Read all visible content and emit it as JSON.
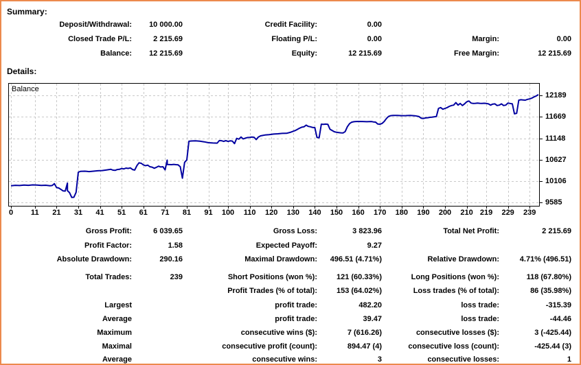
{
  "colors": {
    "accent_border": "#EC8A4D",
    "balance_line": "#0000A0",
    "grid": "#C8C8C8",
    "text": "#000000"
  },
  "summary": {
    "title": "Summary:",
    "rows": [
      [
        "Deposit/Withdrawal:",
        "10 000.00",
        "Credit Facility:",
        "0.00",
        "",
        ""
      ],
      [
        "Closed Trade P/L:",
        "2 215.69",
        "Floating P/L:",
        "0.00",
        "Margin:",
        "0.00"
      ],
      [
        "Balance:",
        "12 215.69",
        "Equity:",
        "12 215.69",
        "Free Margin:",
        "12 215.69"
      ]
    ]
  },
  "details": {
    "title": "Details:",
    "rows": [
      [
        "Gross Profit:",
        "6 039.65",
        "Gross Loss:",
        "3 823.96",
        "Total Net Profit:",
        "2 215.69"
      ],
      [
        "Profit Factor:",
        "1.58",
        "Expected Payoff:",
        "9.27",
        "",
        ""
      ],
      [
        "Absolute Drawdown:",
        "290.16",
        "Maximal Drawdown:",
        "496.51 (4.71%)",
        "Relative Drawdown:",
        "4.71% (496.51)"
      ],
      [
        "Total Trades:",
        "239",
        "Short Positions (won %):",
        "121 (60.33%)",
        "Long Positions (won %):",
        "118 (67.80%)"
      ],
      [
        "",
        "",
        "Profit Trades (% of total):",
        "153 (64.02%)",
        "Loss trades (% of total):",
        "86 (35.98%)"
      ],
      [
        "Largest",
        "",
        "profit trade:",
        "482.20",
        "loss trade:",
        "-315.39"
      ],
      [
        "Average",
        "",
        "profit trade:",
        "39.47",
        "loss trade:",
        "-44.46"
      ],
      [
        "Maximum",
        "",
        "consecutive wins ($):",
        "7 (616.26)",
        "consecutive losses ($):",
        "3 (-425.44)"
      ],
      [
        "Maximal",
        "",
        "consecutive profit (count):",
        "894.47 (4)",
        "consecutive loss (count):",
        "-425.44 (3)"
      ],
      [
        "Average",
        "",
        "consecutive wins:",
        "3",
        "consecutive losses:",
        "1"
      ]
    ]
  },
  "chart_data": {
    "type": "line",
    "title": "Balance",
    "legend": [
      "Balance"
    ],
    "grid": "dashed",
    "xlim": [
      0,
      243
    ],
    "ylim": [
      9500,
      12480
    ],
    "x_ticks": [
      0,
      11,
      21,
      31,
      41,
      51,
      61,
      71,
      81,
      91,
      100,
      110,
      120,
      130,
      140,
      150,
      160,
      170,
      180,
      190,
      200,
      210,
      219,
      229,
      239
    ],
    "y_ticks": [
      12189,
      11669,
      11148,
      10627,
      10106,
      9585
    ],
    "series": [
      {
        "name": "Balance",
        "points": [
          [
            0,
            9990
          ],
          [
            2,
            10000
          ],
          [
            4,
            9995
          ],
          [
            6,
            10005
          ],
          [
            8,
            10000
          ],
          [
            10,
            10010
          ],
          [
            12,
            10005
          ],
          [
            14,
            9998
          ],
          [
            16,
            10002
          ],
          [
            18,
            9990
          ],
          [
            19,
            9995
          ],
          [
            20,
            10040
          ],
          [
            21,
            9945
          ],
          [
            22,
            9935
          ],
          [
            23,
            9900
          ],
          [
            24,
            9865
          ],
          [
            25,
            9860
          ],
          [
            26,
            10055
          ],
          [
            26,
            9870
          ],
          [
            27,
            9820
          ],
          [
            28,
            9705
          ],
          [
            29,
            9710
          ],
          [
            30,
            9830
          ],
          [
            31,
            10320
          ],
          [
            32,
            10340
          ],
          [
            34,
            10345
          ],
          [
            36,
            10335
          ],
          [
            38,
            10345
          ],
          [
            40,
            10355
          ],
          [
            42,
            10360
          ],
          [
            44,
            10375
          ],
          [
            46,
            10390
          ],
          [
            47,
            10370
          ],
          [
            48,
            10365
          ],
          [
            49,
            10385
          ],
          [
            50,
            10390
          ],
          [
            51,
            10410
          ],
          [
            52,
            10400
          ],
          [
            53,
            10420
          ],
          [
            54,
            10412
          ],
          [
            55,
            10425
          ],
          [
            56,
            10385
          ],
          [
            57,
            10372
          ],
          [
            58,
            10480
          ],
          [
            59,
            10550
          ],
          [
            60,
            10538
          ],
          [
            61,
            10500
          ],
          [
            62,
            10480
          ],
          [
            63,
            10492
          ],
          [
            64,
            10455
          ],
          [
            65,
            10445
          ],
          [
            66,
            10418
          ],
          [
            67,
            10440
          ],
          [
            68,
            10468
          ],
          [
            69,
            10448
          ],
          [
            70,
            10455
          ],
          [
            71,
            10378
          ],
          [
            72,
            10615
          ],
          [
            72,
            10508
          ],
          [
            74,
            10505
          ],
          [
            75,
            10512
          ],
          [
            76,
            10505
          ],
          [
            77,
            10500
          ],
          [
            78,
            10455
          ],
          [
            79,
            10175
          ],
          [
            80,
            10560
          ],
          [
            81,
            10620
          ],
          [
            82,
            11075
          ],
          [
            83,
            11082
          ],
          [
            85,
            11085
          ],
          [
            87,
            11078
          ],
          [
            89,
            11062
          ],
          [
            91,
            11040
          ],
          [
            93,
            11033
          ],
          [
            95,
            11030
          ],
          [
            96,
            11092
          ],
          [
            97,
            11088
          ],
          [
            98,
            11072
          ],
          [
            99,
            11090
          ],
          [
            100,
            11072
          ],
          [
            101,
            11085
          ],
          [
            102,
            11080
          ],
          [
            103,
            11018
          ],
          [
            104,
            11145
          ],
          [
            105,
            11128
          ],
          [
            106,
            11180
          ],
          [
            107,
            11133
          ],
          [
            108,
            11152
          ],
          [
            109,
            11165
          ],
          [
            110,
            11170
          ],
          [
            111,
            11180
          ],
          [
            112,
            11172
          ],
          [
            113,
            11118
          ],
          [
            114,
            11180
          ],
          [
            115,
            11208
          ],
          [
            117,
            11228
          ],
          [
            119,
            11238
          ],
          [
            121,
            11252
          ],
          [
            123,
            11258
          ],
          [
            125,
            11268
          ],
          [
            127,
            11270
          ],
          [
            129,
            11298
          ],
          [
            131,
            11338
          ],
          [
            133,
            11395
          ],
          [
            134,
            11418
          ],
          [
            135,
            11428
          ],
          [
            136,
            11468
          ],
          [
            137,
            11438
          ],
          [
            138,
            11428
          ],
          [
            139,
            11412
          ],
          [
            140,
            11408
          ],
          [
            141,
            11168
          ],
          [
            142,
            11162
          ],
          [
            143,
            11492
          ],
          [
            144,
            11488
          ],
          [
            145,
            11494
          ],
          [
            146,
            11488
          ],
          [
            147,
            11368
          ],
          [
            148,
            11338
          ],
          [
            149,
            11308
          ],
          [
            150,
            11295
          ],
          [
            151,
            11288
          ],
          [
            152,
            11282
          ],
          [
            153,
            11278
          ],
          [
            154,
            11312
          ],
          [
            155,
            11430
          ],
          [
            156,
            11505
          ],
          [
            157,
            11540
          ],
          [
            158,
            11552
          ],
          [
            159,
            11558
          ],
          [
            160,
            11560
          ],
          [
            162,
            11558
          ],
          [
            164,
            11552
          ],
          [
            166,
            11558
          ],
          [
            167,
            11548
          ],
          [
            168,
            11542
          ],
          [
            169,
            11498
          ],
          [
            170,
            11492
          ],
          [
            171,
            11510
          ],
          [
            172,
            11560
          ],
          [
            173,
            11632
          ],
          [
            174,
            11682
          ],
          [
            175,
            11700
          ],
          [
            176,
            11706
          ],
          [
            178,
            11706
          ],
          [
            180,
            11700
          ],
          [
            182,
            11702
          ],
          [
            184,
            11706
          ],
          [
            186,
            11698
          ],
          [
            187,
            11690
          ],
          [
            188,
            11678
          ],
          [
            189,
            11640
          ],
          [
            190,
            11632
          ],
          [
            191,
            11645
          ],
          [
            192,
            11650
          ],
          [
            193,
            11660
          ],
          [
            194,
            11665
          ],
          [
            195,
            11672
          ],
          [
            196,
            11678
          ],
          [
            197,
            11878
          ],
          [
            198,
            11898
          ],
          [
            199,
            11858
          ],
          [
            200,
            11878
          ],
          [
            201,
            11898
          ],
          [
            202,
            11928
          ],
          [
            203,
            11948
          ],
          [
            204,
            11958
          ],
          [
            205,
            12018
          ],
          [
            206,
            11958
          ],
          [
            207,
            11998
          ],
          [
            208,
            11948
          ],
          [
            209,
            11988
          ],
          [
            210,
            12038
          ],
          [
            211,
            12058
          ],
          [
            212,
            12008
          ],
          [
            213,
            11998
          ],
          [
            214,
            12002
          ],
          [
            215,
            12008
          ],
          [
            216,
            12002
          ],
          [
            217,
            11998
          ],
          [
            218,
            12003
          ],
          [
            219,
            11998
          ],
          [
            220,
            11988
          ],
          [
            221,
            11958
          ],
          [
            222,
            11983
          ],
          [
            223,
            11988
          ],
          [
            224,
            11948
          ],
          [
            225,
            11958
          ],
          [
            226,
            11988
          ],
          [
            227,
            11948
          ],
          [
            228,
            11958
          ],
          [
            229,
            12008
          ],
          [
            230,
            11998
          ],
          [
            231,
            11988
          ],
          [
            232,
            11745
          ],
          [
            233,
            11758
          ],
          [
            234,
            12078
          ],
          [
            235,
            12088
          ],
          [
            236,
            12083
          ],
          [
            237,
            12078
          ],
          [
            238,
            12098
          ],
          [
            239,
            12108
          ],
          [
            240,
            12128
          ],
          [
            241,
            12158
          ],
          [
            242,
            12180
          ],
          [
            243,
            12216
          ]
        ]
      }
    ]
  }
}
